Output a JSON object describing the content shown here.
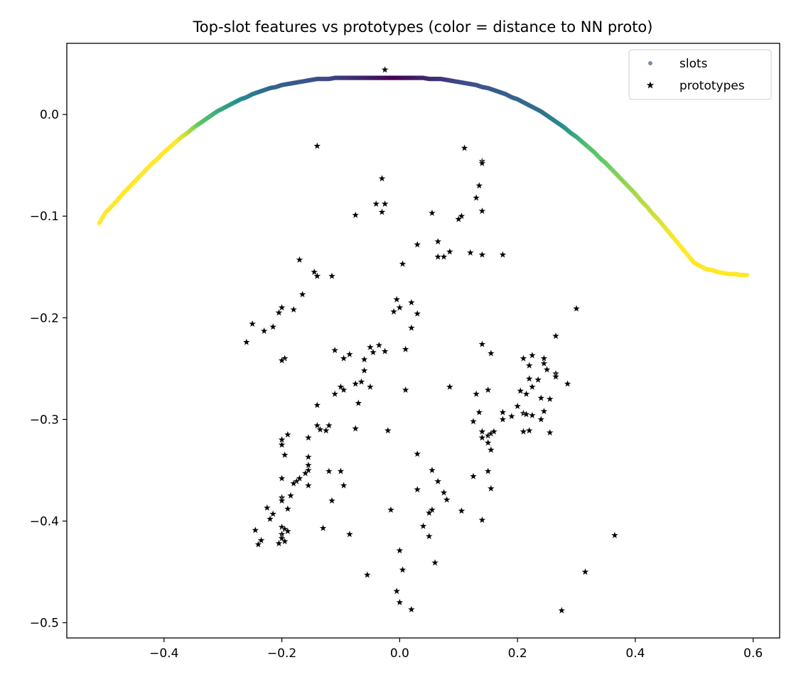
{
  "chart_data": {
    "type": "scatter",
    "title": "Top-slot features vs prototypes (color = distance to NN proto)",
    "xlabel": "",
    "ylabel": "",
    "xlim": [
      -0.565,
      0.645
    ],
    "ylim": [
      -0.515,
      0.07
    ],
    "x_ticks": [
      -0.4,
      -0.2,
      0.0,
      0.2,
      0.4,
      0.6
    ],
    "x_tick_labels": [
      "−0.4",
      "−0.2",
      "0.0",
      "0.2",
      "0.4",
      "0.6"
    ],
    "y_ticks": [
      0.0,
      -0.1,
      -0.2,
      -0.3,
      -0.4,
      -0.5
    ],
    "y_tick_labels": [
      "0.0",
      "−0.1",
      "−0.2",
      "−0.3",
      "−0.4",
      "−0.5"
    ],
    "grid": false,
    "legend_position": "top-right",
    "colormap": "viridis",
    "series": [
      {
        "name": "slots",
        "marker": "circle",
        "color_by": "distance to NN proto",
        "x": [
          -0.51,
          -0.5,
          -0.49,
          -0.48,
          -0.47,
          -0.46,
          -0.45,
          -0.44,
          -0.43,
          -0.42,
          -0.41,
          -0.4,
          -0.39,
          -0.38,
          -0.37,
          -0.36,
          -0.35,
          -0.34,
          -0.33,
          -0.32,
          -0.31,
          -0.3,
          -0.29,
          -0.28,
          -0.27,
          -0.26,
          -0.25,
          -0.24,
          -0.23,
          -0.22,
          -0.21,
          -0.2,
          -0.19,
          -0.18,
          -0.17,
          -0.16,
          -0.15,
          -0.14,
          -0.13,
          -0.12,
          -0.11,
          -0.1,
          -0.09,
          -0.08,
          -0.07,
          -0.06,
          -0.05,
          -0.04,
          -0.03,
          -0.02,
          -0.01,
          0.0,
          0.01,
          0.02,
          0.03,
          0.04,
          0.05,
          0.06,
          0.07,
          0.08,
          0.09,
          0.1,
          0.11,
          0.12,
          0.13,
          0.14,
          0.15,
          0.16,
          0.17,
          0.18,
          0.19,
          0.2,
          0.21,
          0.22,
          0.23,
          0.24,
          0.25,
          0.26,
          0.27,
          0.28,
          0.29,
          0.3,
          0.31,
          0.32,
          0.33,
          0.34,
          0.35,
          0.36,
          0.37,
          0.38,
          0.39,
          0.4,
          0.41,
          0.42,
          0.43,
          0.44,
          0.45,
          0.46,
          0.47,
          0.48,
          0.49,
          0.5,
          0.51,
          0.52,
          0.53,
          0.54,
          0.55,
          0.56,
          0.57,
          0.58,
          0.59
        ],
        "y": [
          -0.107,
          -0.097,
          -0.091,
          -0.085,
          -0.078,
          -0.072,
          -0.066,
          -0.06,
          -0.054,
          -0.048,
          -0.043,
          -0.037,
          -0.032,
          -0.027,
          -0.022,
          -0.018,
          -0.013,
          -0.009,
          -0.005,
          -0.001,
          0.003,
          0.006,
          0.009,
          0.012,
          0.015,
          0.017,
          0.02,
          0.022,
          0.024,
          0.026,
          0.027,
          0.029,
          0.03,
          0.031,
          0.032,
          0.033,
          0.034,
          0.035,
          0.035,
          0.035,
          0.036,
          0.036,
          0.036,
          0.036,
          0.036,
          0.036,
          0.036,
          0.036,
          0.036,
          0.036,
          0.036,
          0.036,
          0.036,
          0.036,
          0.036,
          0.036,
          0.035,
          0.035,
          0.035,
          0.034,
          0.033,
          0.032,
          0.031,
          0.03,
          0.029,
          0.027,
          0.026,
          0.024,
          0.022,
          0.02,
          0.017,
          0.015,
          0.012,
          0.009,
          0.006,
          0.003,
          -0.001,
          -0.005,
          -0.009,
          -0.013,
          -0.018,
          -0.022,
          -0.027,
          -0.032,
          -0.037,
          -0.043,
          -0.048,
          -0.054,
          -0.06,
          -0.066,
          -0.072,
          -0.078,
          -0.085,
          -0.091,
          -0.098,
          -0.104,
          -0.111,
          -0.118,
          -0.125,
          -0.132,
          -0.139,
          -0.146,
          -0.149,
          -0.152,
          -0.153,
          -0.155,
          -0.156,
          -0.157,
          -0.157,
          -0.158,
          -0.158
        ],
        "distance": [
          1.0,
          1.0,
          1.0,
          1.0,
          1.0,
          1.0,
          1.0,
          1.0,
          1.0,
          1.0,
          1.0,
          1.0,
          1.0,
          1.0,
          0.95,
          0.9,
          0.82,
          0.74,
          0.7,
          0.66,
          0.62,
          0.58,
          0.55,
          0.52,
          0.48,
          0.45,
          0.42,
          0.39,
          0.36,
          0.33,
          0.32,
          0.3,
          0.29,
          0.28,
          0.27,
          0.26,
          0.25,
          0.24,
          0.23,
          0.22,
          0.2,
          0.18,
          0.16,
          0.14,
          0.12,
          0.1,
          0.08,
          0.06,
          0.04,
          0.02,
          0.0,
          0.02,
          0.04,
          0.06,
          0.08,
          0.1,
          0.12,
          0.14,
          0.16,
          0.18,
          0.2,
          0.22,
          0.23,
          0.24,
          0.25,
          0.26,
          0.27,
          0.28,
          0.29,
          0.3,
          0.31,
          0.32,
          0.33,
          0.34,
          0.35,
          0.37,
          0.39,
          0.42,
          0.45,
          0.5,
          0.55,
          0.6,
          0.65,
          0.7,
          0.72,
          0.74,
          0.76,
          0.78,
          0.8,
          0.82,
          0.84,
          0.86,
          0.88,
          0.9,
          0.92,
          0.94,
          0.96,
          0.98,
          1.0,
          1.0,
          1.0,
          1.0,
          1.0,
          1.0,
          1.0,
          1.0,
          1.0,
          1.0,
          1.0,
          1.0,
          1.0
        ]
      },
      {
        "name": "prototypes",
        "marker": "star",
        "color": "#000000",
        "points": [
          [
            -0.025,
            0.044
          ],
          [
            -0.14,
            -0.031
          ],
          [
            0.11,
            -0.033
          ],
          [
            0.14,
            -0.046
          ],
          [
            0.14,
            -0.048
          ],
          [
            -0.03,
            -0.063
          ],
          [
            0.135,
            -0.07
          ],
          [
            0.13,
            -0.082
          ],
          [
            -0.04,
            -0.088
          ],
          [
            -0.025,
            -0.088
          ],
          [
            -0.03,
            -0.096
          ],
          [
            0.14,
            -0.095
          ],
          [
            0.055,
            -0.097
          ],
          [
            -0.075,
            -0.099
          ],
          [
            0.105,
            -0.1
          ],
          [
            0.1,
            -0.103
          ],
          [
            0.065,
            -0.125
          ],
          [
            0.03,
            -0.128
          ],
          [
            0.085,
            -0.135
          ],
          [
            0.12,
            -0.136
          ],
          [
            0.14,
            -0.138
          ],
          [
            0.175,
            -0.138
          ],
          [
            0.065,
            -0.14
          ],
          [
            0.075,
            -0.14
          ],
          [
            -0.17,
            -0.143
          ],
          [
            0.005,
            -0.147
          ],
          [
            -0.145,
            -0.155
          ],
          [
            -0.14,
            -0.159
          ],
          [
            -0.115,
            -0.159
          ],
          [
            -0.165,
            -0.177
          ],
          [
            -0.005,
            -0.182
          ],
          [
            0.02,
            -0.185
          ],
          [
            -0.2,
            -0.19
          ],
          [
            -0.18,
            -0.192
          ],
          [
            -0.205,
            -0.195
          ],
          [
            -0.01,
            -0.194
          ],
          [
            0.0,
            -0.19
          ],
          [
            0.03,
            -0.196
          ],
          [
            0.3,
            -0.191
          ],
          [
            -0.25,
            -0.206
          ],
          [
            -0.215,
            -0.209
          ],
          [
            -0.23,
            -0.213
          ],
          [
            0.02,
            -0.21
          ],
          [
            0.265,
            -0.218
          ],
          [
            -0.26,
            -0.224
          ],
          [
            0.14,
            -0.226
          ],
          [
            -0.05,
            -0.229
          ],
          [
            -0.035,
            -0.227
          ],
          [
            -0.11,
            -0.232
          ],
          [
            -0.045,
            -0.234
          ],
          [
            -0.025,
            -0.233
          ],
          [
            0.01,
            -0.231
          ],
          [
            -0.085,
            -0.236
          ],
          [
            0.155,
            -0.235
          ],
          [
            -0.095,
            -0.24
          ],
          [
            -0.195,
            -0.24
          ],
          [
            -0.2,
            -0.242
          ],
          [
            -0.06,
            -0.241
          ],
          [
            0.21,
            -0.24
          ],
          [
            0.225,
            -0.237
          ],
          [
            0.245,
            -0.24
          ],
          [
            0.245,
            -0.245
          ],
          [
            0.22,
            -0.247
          ],
          [
            0.25,
            -0.251
          ],
          [
            -0.06,
            -0.252
          ],
          [
            0.265,
            -0.255
          ],
          [
            0.265,
            -0.258
          ],
          [
            0.235,
            -0.261
          ],
          [
            0.22,
            -0.26
          ],
          [
            0.285,
            -0.265
          ],
          [
            -0.065,
            -0.263
          ],
          [
            -0.075,
            -0.265
          ],
          [
            -0.05,
            -0.268
          ],
          [
            -0.1,
            -0.268
          ],
          [
            0.085,
            -0.268
          ],
          [
            0.225,
            -0.268
          ],
          [
            -0.095,
            -0.271
          ],
          [
            0.01,
            -0.271
          ],
          [
            0.15,
            -0.271
          ],
          [
            0.205,
            -0.272
          ],
          [
            0.215,
            -0.275
          ],
          [
            -0.11,
            -0.275
          ],
          [
            0.13,
            -0.275
          ],
          [
            0.24,
            -0.279
          ],
          [
            0.255,
            -0.28
          ],
          [
            -0.07,
            -0.284
          ],
          [
            -0.14,
            -0.286
          ],
          [
            0.2,
            -0.287
          ],
          [
            0.245,
            -0.292
          ],
          [
            0.135,
            -0.293
          ],
          [
            0.175,
            -0.293
          ],
          [
            0.21,
            -0.294
          ],
          [
            0.215,
            -0.295
          ],
          [
            0.225,
            -0.296
          ],
          [
            0.19,
            -0.297
          ],
          [
            0.175,
            -0.3
          ],
          [
            0.24,
            -0.3
          ],
          [
            0.125,
            -0.302
          ],
          [
            -0.14,
            -0.306
          ],
          [
            -0.135,
            -0.31
          ],
          [
            -0.12,
            -0.306
          ],
          [
            -0.125,
            -0.311
          ],
          [
            -0.075,
            -0.309
          ],
          [
            -0.02,
            -0.311
          ],
          [
            0.14,
            -0.312
          ],
          [
            0.21,
            -0.312
          ],
          [
            0.22,
            -0.311
          ],
          [
            0.255,
            -0.313
          ],
          [
            0.15,
            -0.316
          ],
          [
            0.155,
            -0.314
          ],
          [
            0.16,
            -0.312
          ],
          [
            0.14,
            -0.318
          ],
          [
            -0.19,
            -0.315
          ],
          [
            -0.2,
            -0.32
          ],
          [
            -0.155,
            -0.318
          ],
          [
            -0.2,
            -0.325
          ],
          [
            0.15,
            -0.323
          ],
          [
            0.155,
            -0.33
          ],
          [
            -0.195,
            -0.335
          ],
          [
            0.03,
            -0.334
          ],
          [
            -0.155,
            -0.337
          ],
          [
            -0.155,
            -0.345
          ],
          [
            -0.155,
            -0.35
          ],
          [
            -0.16,
            -0.353
          ],
          [
            -0.12,
            -0.351
          ],
          [
            -0.1,
            -0.351
          ],
          [
            0.055,
            -0.35
          ],
          [
            0.15,
            -0.351
          ],
          [
            0.125,
            -0.356
          ],
          [
            -0.2,
            -0.358
          ],
          [
            -0.17,
            -0.358
          ],
          [
            -0.175,
            -0.361
          ],
          [
            -0.18,
            -0.363
          ],
          [
            0.065,
            -0.361
          ],
          [
            -0.155,
            -0.365
          ],
          [
            -0.095,
            -0.365
          ],
          [
            0.155,
            -0.368
          ],
          [
            0.03,
            -0.369
          ],
          [
            0.075,
            -0.372
          ],
          [
            0.08,
            -0.379
          ],
          [
            -0.185,
            -0.375
          ],
          [
            -0.2,
            -0.377
          ],
          [
            -0.2,
            -0.38
          ],
          [
            -0.115,
            -0.38
          ],
          [
            -0.19,
            -0.388
          ],
          [
            -0.225,
            -0.387
          ],
          [
            -0.015,
            -0.389
          ],
          [
            0.055,
            -0.389
          ],
          [
            0.105,
            -0.39
          ],
          [
            0.05,
            -0.392
          ],
          [
            -0.22,
            -0.398
          ],
          [
            -0.215,
            -0.393
          ],
          [
            0.14,
            -0.399
          ],
          [
            0.04,
            -0.405
          ],
          [
            -0.2,
            -0.406
          ],
          [
            -0.195,
            -0.408
          ],
          [
            -0.19,
            -0.41
          ],
          [
            -0.245,
            -0.409
          ],
          [
            -0.13,
            -0.407
          ],
          [
            -0.2,
            -0.413
          ],
          [
            -0.2,
            -0.417
          ],
          [
            -0.195,
            -0.42
          ],
          [
            -0.205,
            -0.422
          ],
          [
            -0.085,
            -0.413
          ],
          [
            0.05,
            -0.415
          ],
          [
            0.365,
            -0.414
          ],
          [
            -0.235,
            -0.419
          ],
          [
            -0.24,
            -0.423
          ],
          [
            0.0,
            -0.429
          ],
          [
            0.06,
            -0.441
          ],
          [
            0.005,
            -0.448
          ],
          [
            0.315,
            -0.45
          ],
          [
            -0.055,
            -0.453
          ],
          [
            -0.005,
            -0.469
          ],
          [
            0.0,
            -0.48
          ],
          [
            0.02,
            -0.487
          ],
          [
            0.275,
            -0.488
          ]
        ]
      }
    ]
  }
}
